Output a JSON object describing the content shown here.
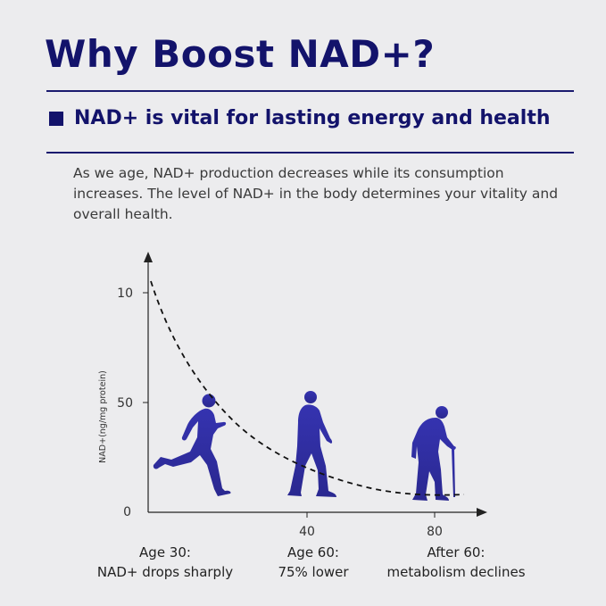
{
  "header": {
    "title": "Why Boost NAD+?",
    "subtitle": "NAD+ is vital for lasting energy and health",
    "intro": "As we age, NAD+ production decreases while its consumption increases. The level of NAD+ in the body determines your vitality and overall health."
  },
  "chart_data": {
    "type": "line",
    "ylabel": "NAD+(ng/mg protein)",
    "xlabel": "",
    "y_ticks": [
      "10",
      "50",
      "0"
    ],
    "x_ticks": [
      "40",
      "80"
    ],
    "series": [
      {
        "style": "dashed",
        "description_points": [
          [
            0,
            100
          ],
          [
            20,
            55
          ],
          [
            40,
            22
          ],
          [
            60,
            10
          ],
          [
            80,
            7
          ],
          [
            90,
            7
          ]
        ]
      }
    ],
    "figures": [
      "runner-icon",
      "walking-man-icon",
      "elderly-man-with-cane-icon"
    ],
    "figure_color": "#2e2ca0",
    "grid": false
  },
  "captions": [
    {
      "line1": "Age 30:",
      "line2": "NAD+ drops sharply"
    },
    {
      "line1": "Age 60:",
      "line2": "75% lower"
    },
    {
      "line1": "After 60:",
      "line2": "metabolism declines"
    }
  ],
  "colors": {
    "navy": "#13136b",
    "figure": "#2e2ca0"
  }
}
